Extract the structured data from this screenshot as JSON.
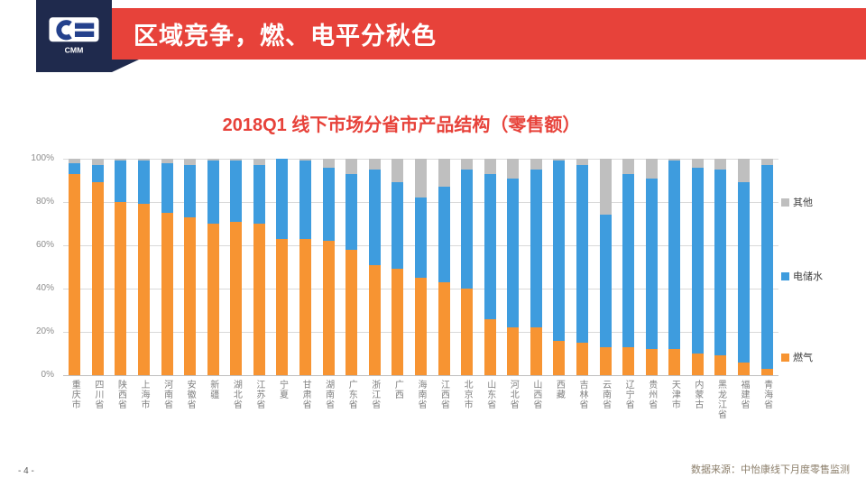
{
  "header": {
    "title": "区域竞争，燃、电平分秋色",
    "logo_text": "CMM"
  },
  "theme": {
    "banner_red": "#E7423A",
    "navy": "#1F2A4D",
    "title_red": "#E7423A",
    "gas_orange": "#F79432",
    "electric_blue": "#3E9CDE",
    "other_gray": "#BFBFBF"
  },
  "chart_data": {
    "type": "bar",
    "stacked": true,
    "units": "percent",
    "title": "2018Q1 线下市场分省市产品结构（零售额）",
    "categories": [
      "重庆市",
      "四川省",
      "陕西省",
      "上海市",
      "河南省",
      "安徽省",
      "新疆",
      "湖北省",
      "江苏省",
      "宁夏",
      "甘肃省",
      "湖南省",
      "广东省",
      "浙江省",
      "广西",
      "海南省",
      "江西省",
      "北京市",
      "山东省",
      "河北省",
      "山西省",
      "西藏",
      "吉林省",
      "云南省",
      "辽宁省",
      "贵州省",
      "天津市",
      "内蒙古",
      "黑龙江省",
      "福建省",
      "青海省"
    ],
    "series": [
      {
        "name": "燃气",
        "color": "#F79432",
        "values": [
          93,
          89,
          80,
          79,
          75,
          73,
          70,
          71,
          70,
          63,
          63,
          62,
          58,
          51,
          49,
          45,
          43,
          40,
          26,
          22,
          22,
          16,
          15,
          13,
          13,
          12,
          12,
          10,
          9,
          6,
          3
        ]
      },
      {
        "name": "电储水",
        "color": "#3E9CDE",
        "values": [
          5,
          8,
          19,
          20,
          23,
          24,
          29,
          28,
          27,
          37,
          36,
          34,
          35,
          44,
          40,
          37,
          44,
          55,
          67,
          69,
          73,
          83,
          82,
          61,
          80,
          79,
          87,
          86,
          86,
          83,
          94
        ]
      },
      {
        "name": "其他",
        "color": "#BFBFBF",
        "values": [
          2,
          3,
          1,
          1,
          2,
          3,
          1,
          1,
          3,
          0,
          1,
          4,
          7,
          5,
          11,
          18,
          13,
          5,
          7,
          9,
          5,
          1,
          3,
          26,
          7,
          9,
          1,
          4,
          5,
          11,
          3
        ]
      }
    ],
    "ylim": [
      0,
      100
    ],
    "yticks": [
      "100%",
      "80%",
      "60%",
      "40%",
      "20%",
      "0%"
    ],
    "legend": [
      "其他",
      "电储水",
      "燃气"
    ],
    "legend_position": "right",
    "grid": true
  },
  "footer": {
    "page_number": "- 4 -",
    "source": "数据来源：中怡康线下月度零售监测"
  }
}
